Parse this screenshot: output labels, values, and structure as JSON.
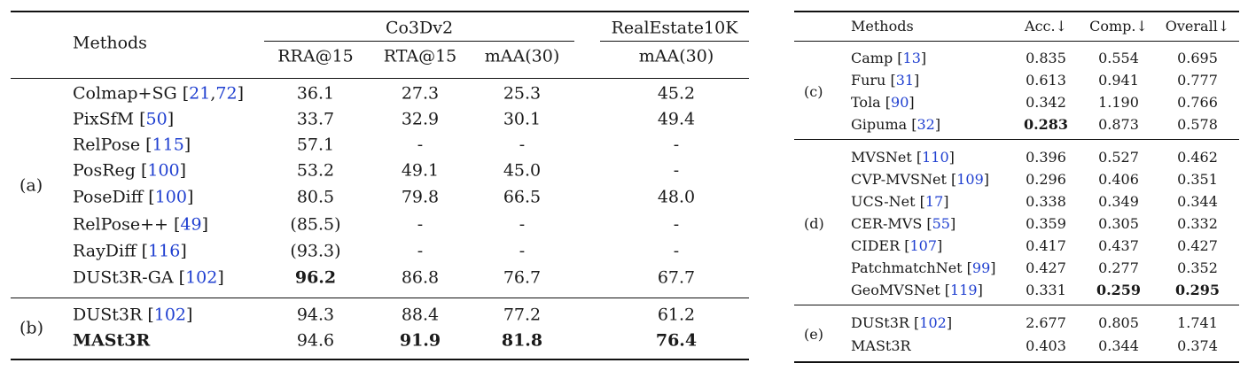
{
  "left_table": {
    "header": {
      "methods": "Methods",
      "group1": "Co3Dv2",
      "group2": "RealEstate10K",
      "cols": [
        "RRA@15",
        "RTA@15",
        "mAA(30)",
        "mAA(30)"
      ]
    },
    "groups": [
      {
        "label": "(a)",
        "rows": [
          {
            "method": "Colmap+SG",
            "refs": [
              "21",
              "72"
            ],
            "v": [
              "36.1",
              "27.3",
              "25.3",
              "45.2"
            ],
            "bold": []
          },
          {
            "method": "PixSfM",
            "refs": [
              "50"
            ],
            "v": [
              "33.7",
              "32.9",
              "30.1",
              "49.4"
            ],
            "bold": []
          },
          {
            "method": "RelPose",
            "refs": [
              "115"
            ],
            "v": [
              "57.1",
              "-",
              "-",
              "-"
            ],
            "bold": []
          },
          {
            "method": "PosReg",
            "refs": [
              "100"
            ],
            "v": [
              "53.2",
              "49.1",
              "45.0",
              "-"
            ],
            "bold": []
          },
          {
            "method": "PoseDiff ",
            "refs": [
              "100"
            ],
            "v": [
              "80.5",
              "79.8",
              "66.5",
              "48.0"
            ],
            "bold": []
          },
          {
            "method": "RelPose++",
            "refs": [
              "49"
            ],
            "v": [
              "(85.5)",
              "-",
              "-",
              "-"
            ],
            "bold": []
          },
          {
            "method": "RayDiff",
            "refs": [
              "116"
            ],
            "v": [
              "(93.3)",
              "-",
              "-",
              "-"
            ],
            "bold": []
          },
          {
            "method": "DUSt3R-GA",
            "refs": [
              "102"
            ],
            "v": [
              "96.2",
              "86.8",
              "76.7",
              "67.7"
            ],
            "bold": [
              0
            ]
          }
        ]
      },
      {
        "label": "(b)",
        "rows": [
          {
            "method": "DUSt3R",
            "refs": [
              "102"
            ],
            "v": [
              "94.3",
              "88.4",
              "77.2",
              "61.2"
            ],
            "bold": []
          },
          {
            "method": "MASt3R",
            "refs": [],
            "methodBold": true,
            "v": [
              "94.6",
              "91.9",
              "81.8",
              "76.4"
            ],
            "bold": [
              1,
              2,
              3
            ]
          }
        ]
      }
    ]
  },
  "right_table": {
    "header": {
      "methods": "Methods",
      "cols": [
        "Acc.↓",
        "Comp.↓",
        "Overall↓"
      ]
    },
    "groups": [
      {
        "label": "(c)",
        "rows": [
          {
            "method": "Camp",
            "refs": [
              "13"
            ],
            "v": [
              "0.835",
              "0.554",
              "0.695"
            ],
            "bold": []
          },
          {
            "method": "Furu",
            "refs": [
              "31"
            ],
            "v": [
              "0.613",
              "0.941",
              "0.777"
            ],
            "bold": []
          },
          {
            "method": "Tola",
            "refs": [
              "90"
            ],
            "v": [
              "0.342",
              "1.190",
              "0.766"
            ],
            "bold": []
          },
          {
            "method": "Gipuma",
            "refs": [
              "32"
            ],
            "v": [
              "0.283",
              "0.873",
              "0.578"
            ],
            "bold": [
              0
            ]
          }
        ]
      },
      {
        "label": "(d)",
        "rows": [
          {
            "method": "MVSNet",
            "refs": [
              "110"
            ],
            "v": [
              "0.396",
              "0.527",
              "0.462"
            ],
            "bold": []
          },
          {
            "method": "CVP-MVSNet",
            "refs": [
              "109"
            ],
            "v": [
              "0.296",
              "0.406",
              "0.351"
            ],
            "bold": []
          },
          {
            "method": "UCS-Net",
            "refs": [
              "17"
            ],
            "v": [
              "0.338",
              "0.349",
              "0.344"
            ],
            "bold": []
          },
          {
            "method": "CER-MVS",
            "refs": [
              "55"
            ],
            "v": [
              "0.359",
              "0.305",
              "0.332"
            ],
            "bold": []
          },
          {
            "method": "CIDER",
            "refs": [
              "107"
            ],
            "v": [
              "0.417",
              "0.437",
              "0.427"
            ],
            "bold": []
          },
          {
            "method": "PatchmatchNet",
            "refs": [
              "99"
            ],
            "v": [
              "0.427",
              "0.277",
              "0.352"
            ],
            "bold": []
          },
          {
            "method": "GeoMVSNet",
            "refs": [
              "119"
            ],
            "v": [
              "0.331",
              "0.259",
              "0.295"
            ],
            "bold": [
              1,
              2
            ]
          }
        ]
      },
      {
        "label": "(e)",
        "rows": [
          {
            "method": "DUSt3R",
            "refs": [
              "102"
            ],
            "v": [
              "2.677",
              "0.805",
              "1.741"
            ],
            "bold": []
          },
          {
            "method": "MASt3R",
            "refs": [],
            "v": [
              "0.403",
              "0.344",
              "0.374"
            ],
            "bold": []
          }
        ]
      }
    ]
  },
  "colors": {
    "text": "#1a1a1a",
    "citation": "#1f3fd0",
    "rule": "#111111"
  }
}
